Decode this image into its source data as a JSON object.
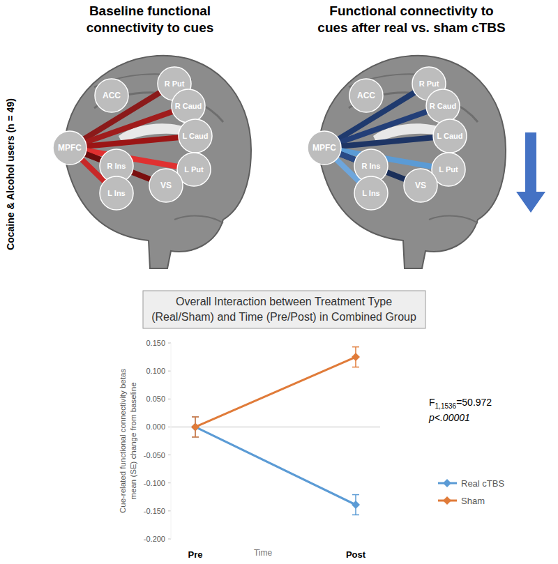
{
  "diagram": {
    "panels": [
      {
        "title": [
          "Baseline functional",
          "connectivity to cues"
        ],
        "edges": [
          {
            "to": "R Put",
            "color": "#8b1a1a"
          },
          {
            "to": "R Caud",
            "color": "#a01c1c"
          },
          {
            "to": "L Caud",
            "color": "#9b1515"
          },
          {
            "to": "L Put",
            "color": "#e03030"
          },
          {
            "to": "VS",
            "color": "#7a0f0f"
          },
          {
            "to": "R Ins",
            "color": "#6b0d0d"
          },
          {
            "to": "L Ins",
            "color": "#c82828"
          }
        ]
      },
      {
        "title": [
          "Functional connectivity to",
          "cues after real vs. sham cTBS"
        ],
        "edges": [
          {
            "to": "R Put",
            "color": "#1f3a6e"
          },
          {
            "to": "R Caud",
            "color": "#233f78"
          },
          {
            "to": "L Caud",
            "color": "#1e3565"
          },
          {
            "to": "L Put",
            "color": "#5b9bd5"
          },
          {
            "to": "VS",
            "color": "#1a2f5a"
          },
          {
            "to": "R Ins",
            "color": "#2a4a85"
          },
          {
            "to": "L Ins",
            "color": "#6ea6dc"
          }
        ]
      }
    ],
    "hub": "MPFC",
    "nodes": [
      "ACC",
      "R Put",
      "R Caud",
      "L Caud",
      "L Put",
      "VS",
      "R Ins",
      "L Ins",
      "MPFC"
    ],
    "side_label": "Cocaine & Alcohol users (n = 49)"
  },
  "chart_data": {
    "type": "line",
    "title": [
      "Overall Interaction between Treatment Type",
      "(Real/Sham) and Time (Pre/Post) in Combined Group"
    ],
    "categories": [
      "Pre",
      "Post"
    ],
    "x_label": "Time",
    "y_label": [
      "Cue-related functional connectivity betas",
      "mean (SE) change from baseline"
    ],
    "ylim": [
      -0.2,
      0.15
    ],
    "yticks": [
      {
        "value": -0.2,
        "label": "-0.200"
      },
      {
        "value": -0.15,
        "label": "-0.150"
      },
      {
        "value": -0.1,
        "label": "-0.100"
      },
      {
        "value": -0.05,
        "label": "-0.050"
      },
      {
        "value": 0,
        "label": "0.000"
      },
      {
        "value": 0.05,
        "label": "0.050"
      },
      {
        "value": 0.1,
        "label": "0.100"
      },
      {
        "value": 0.15,
        "label": "0.150"
      }
    ],
    "grid": false,
    "legend": "right",
    "marker": "diamond",
    "series": [
      {
        "name": "Real cTBS",
        "color": "#5b9bd5",
        "values": [
          0,
          -0.139
        ],
        "error": [
          0.018,
          0.018
        ]
      },
      {
        "name": "Sham",
        "color": "#e07b39",
        "values": [
          0,
          0.125
        ],
        "error": [
          0.018,
          0.018
        ]
      }
    ],
    "annotation": {
      "stat": "F",
      "df": "1,1536",
      "value_text": "=50.972",
      "p": "p<.00001"
    }
  }
}
